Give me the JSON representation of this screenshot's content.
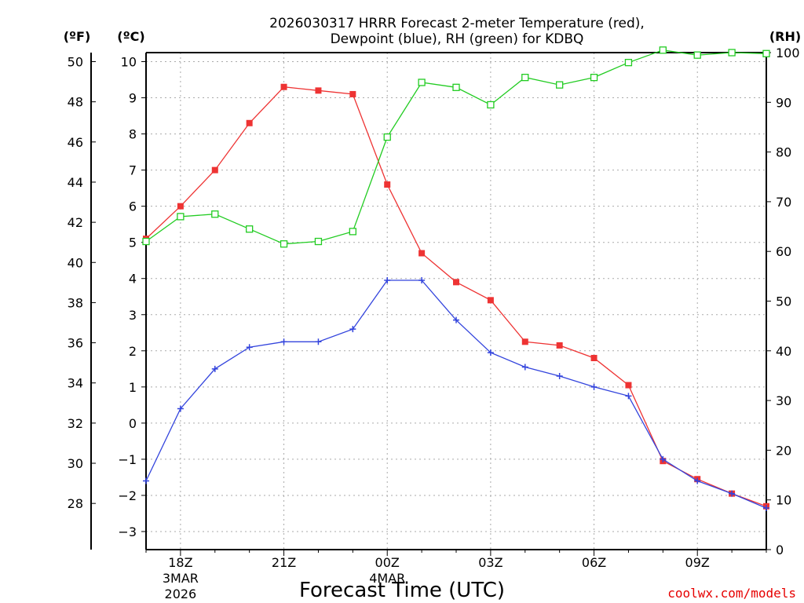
{
  "title_lines": [
    "2026030317 HRRR Forecast 2-meter Temperature (red),",
    "Dewpoint (blue), RH (green) for KDBQ"
  ],
  "units": {
    "fahrenheit": "(ºF)",
    "celsius": "(ºC)",
    "rh": "(RH)"
  },
  "xlabel": "Forecast Time (UTC)",
  "credit": "coolwx.com/models",
  "colors": {
    "temperature": "#ee3333",
    "dewpoint": "#3344dd",
    "rh": "#22cc22",
    "grid": "#aaaaaa"
  },
  "chart_data": {
    "type": "line",
    "x": [
      "17Z",
      "18Z",
      "19Z",
      "20Z",
      "21Z",
      "22Z",
      "23Z",
      "00Z",
      "01Z",
      "02Z",
      "03Z",
      "04Z",
      "05Z",
      "06Z",
      "07Z",
      "08Z",
      "09Z",
      "10Z",
      "11Z"
    ],
    "x_tick_labels": [
      {
        "hour": "18Z",
        "date": "3MAR",
        "year": "2026"
      },
      {
        "hour": "21Z",
        "date": "",
        "year": ""
      },
      {
        "hour": "00Z",
        "date": "4MAR",
        "year": ""
      },
      {
        "hour": "03Z",
        "date": "",
        "year": ""
      },
      {
        "hour": "06Z",
        "date": "",
        "year": ""
      },
      {
        "hour": "09Z",
        "date": "",
        "year": ""
      }
    ],
    "y_celsius": {
      "range": [
        -3.5,
        10.25
      ],
      "ticks": [
        -3,
        -2,
        -1,
        0,
        1,
        2,
        3,
        4,
        5,
        6,
        7,
        8,
        9,
        10
      ]
    },
    "y_fahrenheit": {
      "ticks": [
        28,
        30,
        32,
        34,
        36,
        38,
        40,
        42,
        44,
        46,
        48,
        50
      ]
    },
    "y_rh": {
      "range": [
        0,
        100
      ],
      "ticks": [
        0,
        10,
        20,
        30,
        40,
        50,
        60,
        70,
        80,
        90,
        100
      ]
    },
    "grid": true,
    "series": [
      {
        "name": "Temperature",
        "axis": "celsius",
        "color": "#ee3333",
        "marker": "filled-square",
        "values": [
          5.1,
          6.0,
          7.0,
          8.3,
          9.3,
          9.2,
          9.1,
          6.6,
          4.7,
          3.9,
          3.4,
          2.25,
          2.15,
          1.8,
          1.05,
          -1.05,
          -1.55,
          -1.95,
          -2.3
        ]
      },
      {
        "name": "Dewpoint",
        "axis": "celsius",
        "color": "#3344dd",
        "marker": "plus",
        "values": [
          -1.6,
          0.4,
          1.5,
          2.1,
          2.25,
          2.25,
          2.6,
          3.95,
          3.95,
          2.85,
          1.95,
          1.55,
          1.3,
          1.0,
          0.75,
          -1.0,
          -1.6,
          -1.95,
          -2.35
        ]
      },
      {
        "name": "RH",
        "axis": "rh",
        "color": "#22cc22",
        "marker": "open-square",
        "values": [
          62,
          67,
          67.5,
          64.5,
          61.5,
          62,
          64,
          83,
          94,
          93,
          89.5,
          95,
          93.5,
          95,
          98,
          100.5,
          99.5,
          100,
          99.8
        ]
      }
    ]
  }
}
